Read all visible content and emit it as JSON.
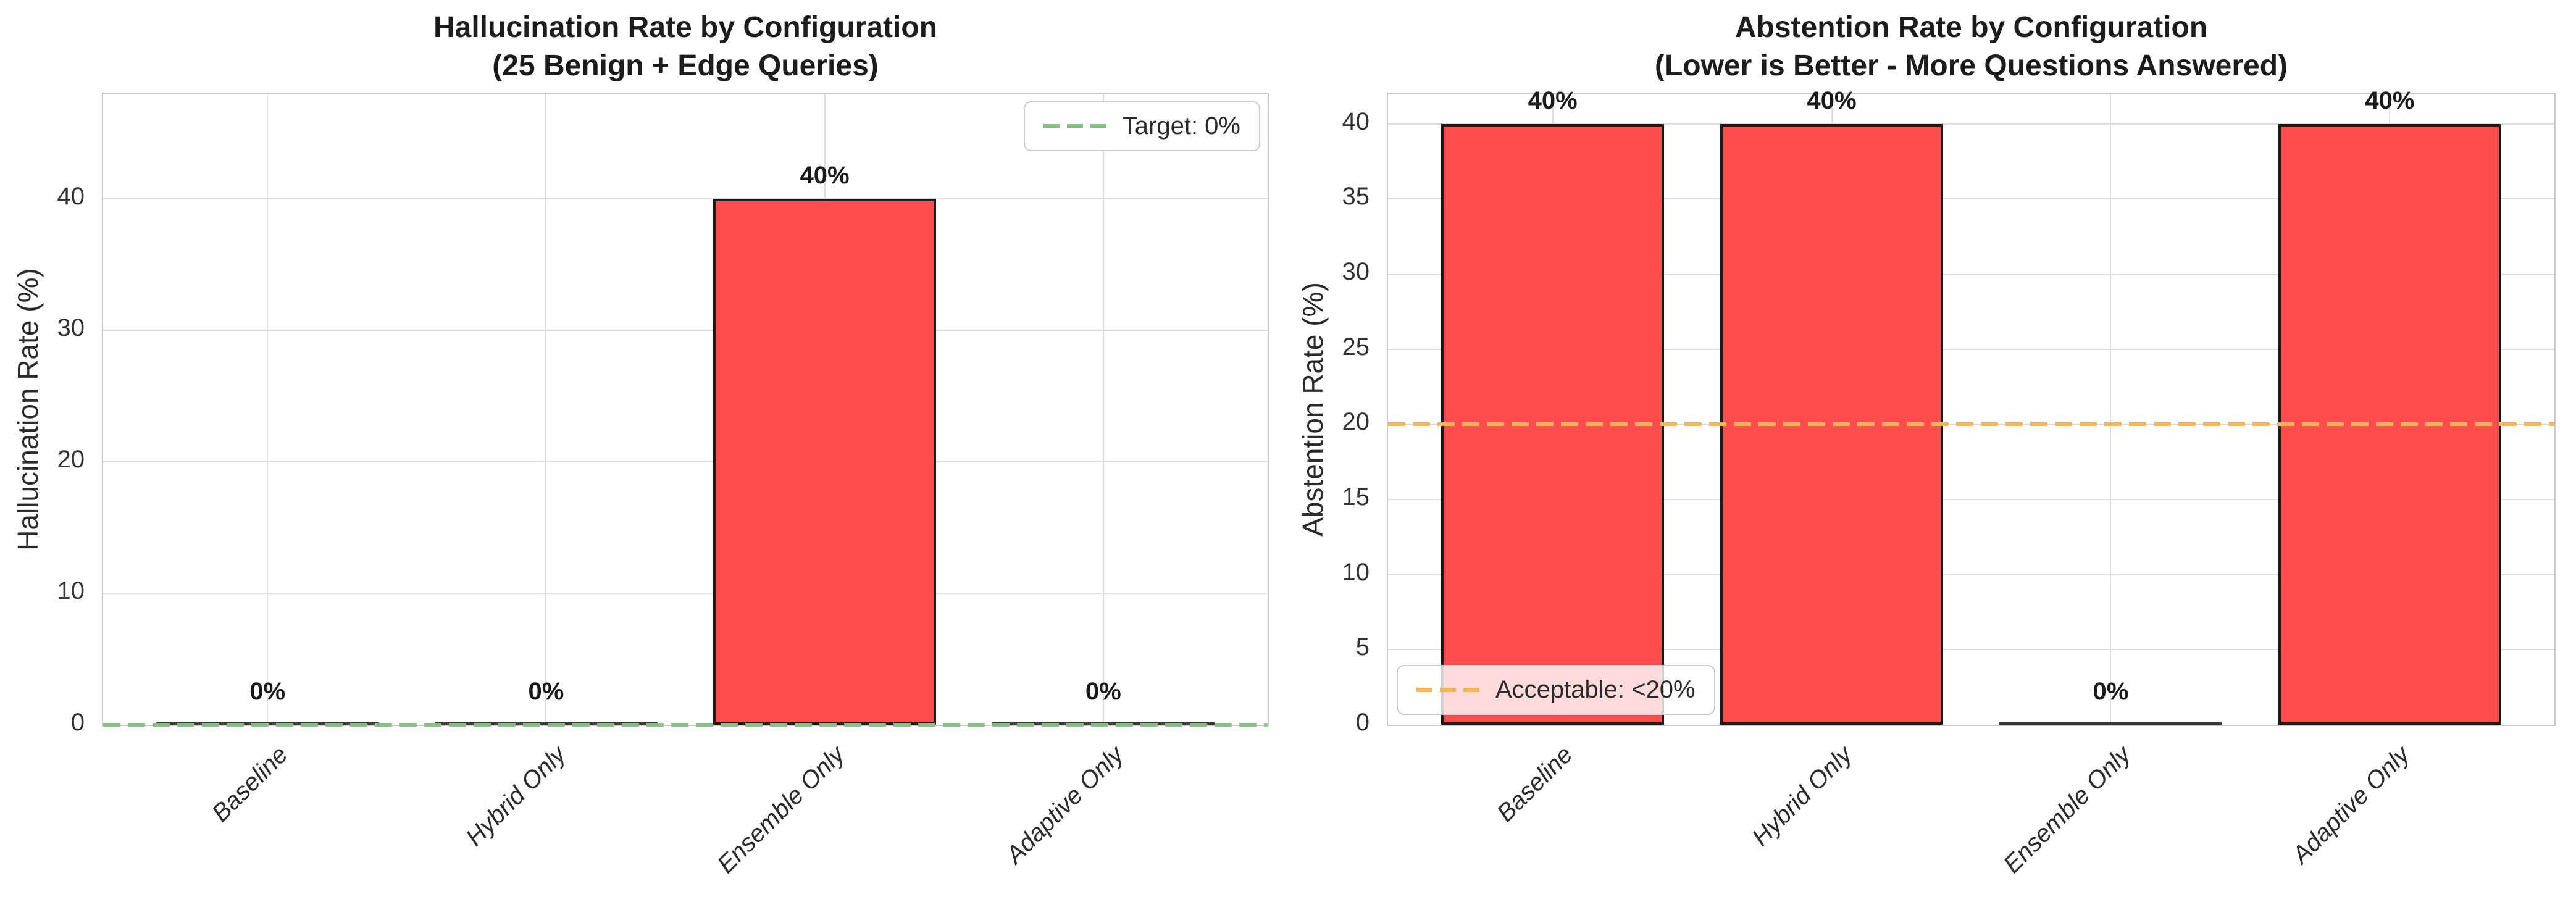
{
  "figure": {
    "background": "#ffffff"
  },
  "chart_data": [
    {
      "type": "bar",
      "title": "Hallucination Rate by Configuration",
      "subtitle": "(25 Benign + Edge Queries)",
      "ylabel": "Hallucination Rate (%)",
      "categories": [
        "Baseline",
        "Hybrid Only",
        "Ensemble Only",
        "Adaptive Only"
      ],
      "values": [
        0,
        0,
        40,
        0
      ],
      "bar_labels": [
        "0%",
        "0%",
        "40%",
        "0%"
      ],
      "yticks": [
        0,
        10,
        20,
        30,
        40
      ],
      "ylim": [
        0,
        48
      ],
      "grid": true,
      "legend_position": "upper right",
      "bar_color": "#ff4d4d",
      "bar_edge_color": "#1a1a1a",
      "reference_line": {
        "value": 0,
        "color": "#85c185",
        "style": "dashed",
        "legend_label": "Target: 0%"
      }
    },
    {
      "type": "bar",
      "title": "Abstention Rate by Configuration",
      "subtitle": "(Lower is Better - More Questions Answered)",
      "ylabel": "Abstention Rate (%)",
      "categories": [
        "Baseline",
        "Hybrid Only",
        "Ensemble Only",
        "Adaptive Only"
      ],
      "values": [
        40,
        40,
        0,
        40
      ],
      "bar_labels": [
        "40%",
        "40%",
        "0%",
        "40%"
      ],
      "yticks": [
        0,
        5,
        10,
        15,
        20,
        25,
        30,
        35,
        40
      ],
      "ylim": [
        0,
        42
      ],
      "grid": true,
      "legend_position": "lower left",
      "bar_color": "#ff4d4d",
      "bar_edge_color": "#1a1a1a",
      "reference_line": {
        "value": 20,
        "color": "#f4b458",
        "style": "dashed",
        "legend_label": "Acceptable: <20%"
      }
    }
  ]
}
